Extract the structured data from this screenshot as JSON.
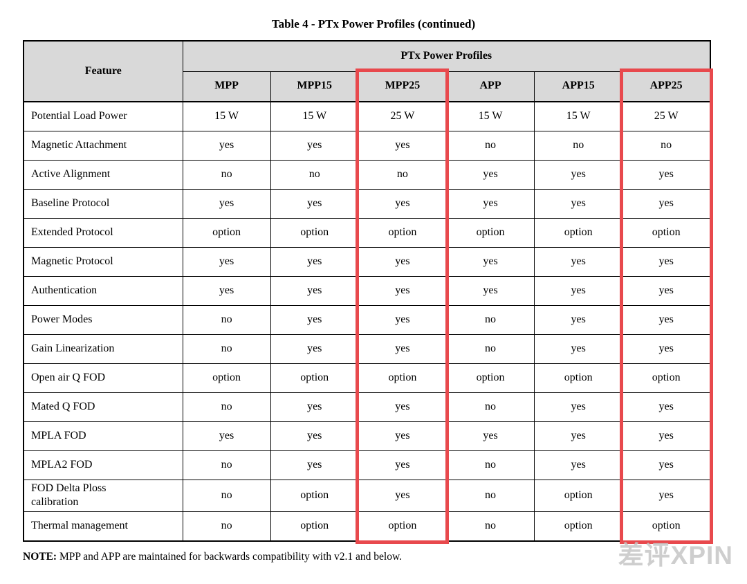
{
  "title": "Table 4 - PTx Power Profiles (continued)",
  "table": {
    "feature_header": "Feature",
    "group_header": "PTx Power Profiles",
    "columns": [
      "MPP",
      "MPP15",
      "MPP25",
      "APP",
      "APP15",
      "APP25"
    ],
    "highlighted_column_indexes": [
      2,
      5
    ],
    "rows": [
      {
        "feature": "Potential Load Power",
        "values": [
          "15 W",
          "15 W",
          "25 W",
          "15 W",
          "15 W",
          "25 W"
        ]
      },
      {
        "feature": "Magnetic Attachment",
        "values": [
          "yes",
          "yes",
          "yes",
          "no",
          "no",
          "no"
        ]
      },
      {
        "feature": "Active Alignment",
        "values": [
          "no",
          "no",
          "no",
          "yes",
          "yes",
          "yes"
        ]
      },
      {
        "feature": "Baseline Protocol",
        "values": [
          "yes",
          "yes",
          "yes",
          "yes",
          "yes",
          "yes"
        ]
      },
      {
        "feature": "Extended Protocol",
        "values": [
          "option",
          "option",
          "option",
          "option",
          "option",
          "option"
        ]
      },
      {
        "feature": "Magnetic Protocol",
        "values": [
          "yes",
          "yes",
          "yes",
          "yes",
          "yes",
          "yes"
        ]
      },
      {
        "feature": "Authentication",
        "values": [
          "yes",
          "yes",
          "yes",
          "yes",
          "yes",
          "yes"
        ]
      },
      {
        "feature": "Power Modes",
        "values": [
          "no",
          "yes",
          "yes",
          "no",
          "yes",
          "yes"
        ]
      },
      {
        "feature": "Gain Linearization",
        "values": [
          "no",
          "yes",
          "yes",
          "no",
          "yes",
          "yes"
        ]
      },
      {
        "feature": "Open air Q FOD",
        "values": [
          "option",
          "option",
          "option",
          "option",
          "option",
          "option"
        ]
      },
      {
        "feature": "Mated Q FOD",
        "values": [
          "no",
          "yes",
          "yes",
          "no",
          "yes",
          "yes"
        ]
      },
      {
        "feature": "MPLA FOD",
        "values": [
          "yes",
          "yes",
          "yes",
          "yes",
          "yes",
          "yes"
        ]
      },
      {
        "feature": "MPLA2 FOD",
        "values": [
          "no",
          "yes",
          "yes",
          "no",
          "yes",
          "yes"
        ]
      },
      {
        "feature": "FOD Delta Ploss\ncalibration",
        "values": [
          "no",
          "option",
          "yes",
          "no",
          "option",
          "yes"
        ]
      },
      {
        "feature": "Thermal management",
        "values": [
          "no",
          "option",
          "option",
          "no",
          "option",
          "option"
        ]
      }
    ]
  },
  "note": {
    "label": "NOTE:",
    "text": "MPP and APP are maintained for backwards compatibility with v2.1 and below."
  },
  "watermark": "差评XPIN",
  "colors": {
    "highlight": "#e8494d",
    "header_bg": "#d9d9d9",
    "border": "#000000"
  }
}
